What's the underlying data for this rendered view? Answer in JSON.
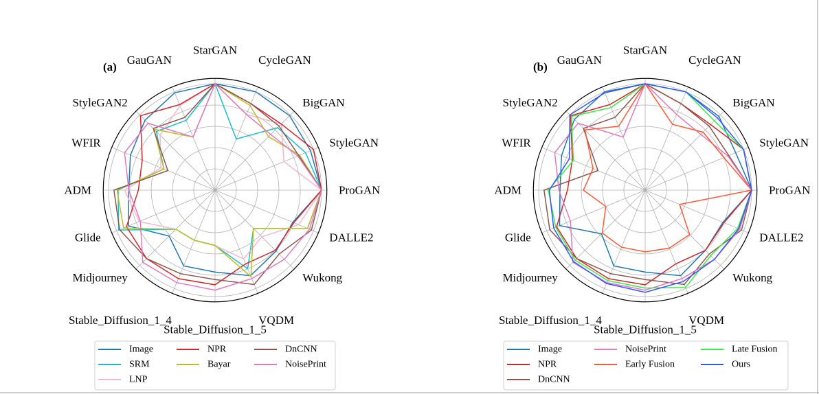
{
  "chart_data": [
    {
      "type": "radar",
      "panel_label": "(a)",
      "categories": [
        "ProGAN",
        "StyleGAN",
        "BigGAN",
        "CycleGAN",
        "StarGAN",
        "GauGAN",
        "StyleGAN2",
        "WFIR",
        "ADM",
        "Glide",
        "Midjourney",
        "Stable_Diffusion_1_4",
        "Stable_Diffusion_1_5",
        "VQDM",
        "Wukong",
        "DALLE2"
      ],
      "rlim": [
        0,
        1.05
      ],
      "grid": true,
      "legend_placement": "bottom",
      "series": [
        {
          "name": "Image",
          "color": "#1f77b4",
          "values": [
            1.0,
            0.97,
            0.99,
            1.0,
            1.0,
            0.99,
            0.93,
            0.86,
            0.81,
            0.88,
            0.61,
            0.77,
            0.77,
            0.87,
            0.81,
            0.79
          ]
        },
        {
          "name": "SRM",
          "color": "#17becf",
          "values": [
            1.0,
            0.92,
            0.83,
            0.52,
            1.0,
            0.71,
            0.78,
            0.52,
            0.91,
            0.98,
            0.52,
            0.51,
            0.52,
            0.8,
            0.51,
            0.94
          ]
        },
        {
          "name": "LNP",
          "color": "#f7b6d2",
          "values": [
            1.0,
            0.7,
            0.88,
            0.77,
            1.0,
            0.86,
            0.73,
            0.55,
            0.85,
            0.77,
            0.52,
            0.51,
            0.52,
            0.7,
            0.62,
            0.85
          ]
        },
        {
          "name": "NPR",
          "color": "#d62728",
          "values": [
            1.0,
            1.0,
            0.88,
            0.88,
            1.0,
            0.87,
            0.99,
            0.74,
            0.72,
            0.9,
            0.91,
            0.9,
            0.89,
            0.75,
            0.8,
            0.8
          ]
        },
        {
          "name": "Bayar",
          "color": "#bcbd22",
          "values": [
            1.0,
            0.86,
            0.71,
            0.86,
            1.0,
            0.54,
            0.81,
            0.52,
            0.92,
            0.93,
            0.52,
            0.51,
            0.52,
            0.88,
            0.51,
            0.94
          ]
        },
        {
          "name": "DnCNN",
          "color": "#8c564b",
          "values": [
            1.0,
            0.85,
            0.85,
            0.88,
            1.0,
            0.74,
            0.82,
            0.48,
            0.95,
            0.97,
            0.91,
            0.85,
            0.84,
            0.96,
            0.85,
            0.98
          ]
        },
        {
          "name": "NoisePrint",
          "color": "#e377c2",
          "values": [
            1.0,
            0.84,
            0.74,
            0.77,
            1.0,
            0.54,
            0.89,
            0.92,
            0.81,
            0.76,
            0.96,
            0.94,
            0.94,
            0.9,
            0.92,
            0.96
          ]
        }
      ]
    },
    {
      "type": "radar",
      "panel_label": "(b)",
      "categories": [
        "ProGAN",
        "StyleGAN",
        "BigGAN",
        "CycleGAN",
        "StarGAN",
        "GauGAN",
        "StyleGAN2",
        "WFIR",
        "ADM",
        "Glide",
        "Midjourney",
        "Stable_Diffusion_1_4",
        "Stable_Diffusion_1_5",
        "VQDM",
        "Wukong",
        "DALLE2"
      ],
      "rlim": [
        0,
        1.05
      ],
      "grid": true,
      "legend_placement": "bottom",
      "series": [
        {
          "name": "Image",
          "color": "#1f77b4",
          "values": [
            1.0,
            0.92,
            0.98,
            1.0,
            1.0,
            1.0,
            0.94,
            0.85,
            0.8,
            0.87,
            0.58,
            0.77,
            0.77,
            0.87,
            0.8,
            0.79
          ]
        },
        {
          "name": "NPR",
          "color": "#d62728",
          "values": [
            1.0,
            1.0,
            0.87,
            0.88,
            1.0,
            0.87,
            0.99,
            0.74,
            0.73,
            0.9,
            0.91,
            0.9,
            0.89,
            0.75,
            0.8,
            0.8
          ]
        },
        {
          "name": "DnCNN",
          "color": "#8c564b",
          "values": [
            1.0,
            0.85,
            0.85,
            0.88,
            1.0,
            0.74,
            0.82,
            0.48,
            0.95,
            0.97,
            0.91,
            0.85,
            0.84,
            0.96,
            0.85,
            0.98
          ]
        },
        {
          "name": "NoisePrint",
          "color": "#e377c2",
          "values": [
            1.0,
            0.84,
            0.74,
            0.77,
            1.0,
            0.54,
            0.89,
            0.92,
            0.81,
            0.76,
            0.96,
            0.94,
            0.94,
            0.9,
            0.92,
            0.96
          ]
        },
        {
          "name": "Early Fusion",
          "color": "#ff5733",
          "values": [
            1.0,
            0.8,
            0.77,
            0.67,
            1.0,
            0.65,
            0.8,
            0.53,
            0.58,
            0.4,
            0.57,
            0.58,
            0.58,
            0.59,
            0.59,
            0.35
          ]
        },
        {
          "name": "Late Fusion",
          "color": "#33ee44",
          "values": [
            1.0,
            1.0,
            0.92,
            1.0,
            1.0,
            0.84,
            0.98,
            0.73,
            0.91,
            0.91,
            0.93,
            0.92,
            0.92,
            0.99,
            0.87,
            0.94
          ]
        },
        {
          "name": "Ours",
          "color": "#3355ff",
          "values": [
            1.0,
            1.0,
            0.96,
            1.0,
            1.0,
            0.99,
            1.0,
            0.77,
            0.9,
            0.93,
            0.95,
            0.95,
            0.96,
            0.93,
            0.92,
            0.95
          ]
        }
      ]
    }
  ]
}
